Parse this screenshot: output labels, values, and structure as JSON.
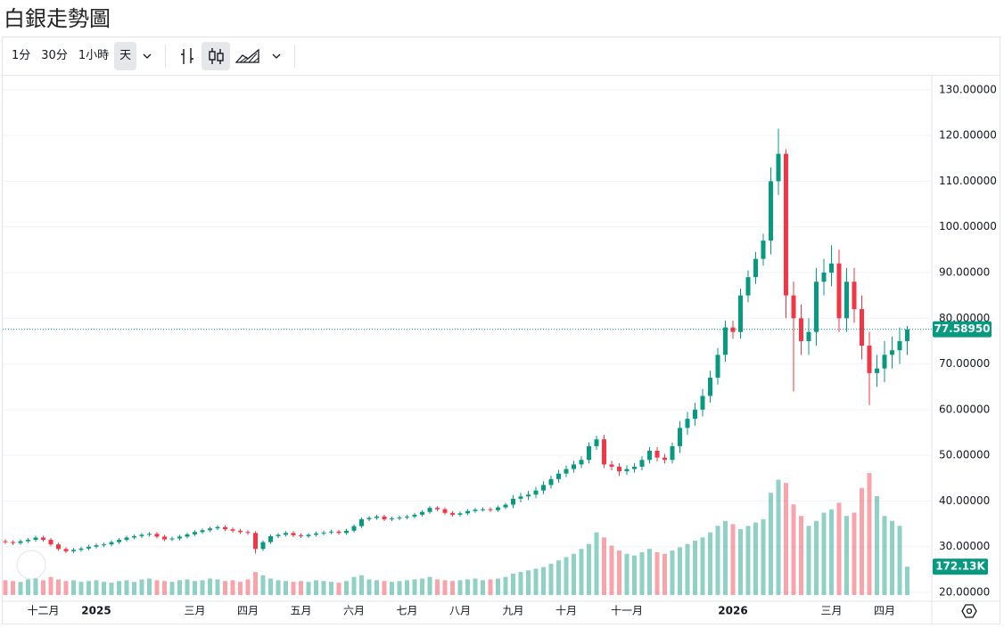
{
  "toolbar": {
    "intervals": [
      "1分",
      "30分",
      "1小時",
      "天"
    ]
  },
  "chart_data": {
    "type": "candlestick",
    "title": "白銀走勢圖",
    "categories": [
      null,
      null,
      null,
      null,
      null,
      "十二月",
      null,
      null,
      null,
      null,
      null,
      null,
      "2025",
      null,
      null,
      null,
      null,
      null,
      null,
      null,
      null,
      null,
      null,
      null,
      null,
      "三月",
      null,
      null,
      null,
      null,
      null,
      null,
      "四月",
      null,
      null,
      null,
      null,
      null,
      null,
      "五月",
      null,
      null,
      null,
      null,
      null,
      null,
      "六月",
      null,
      null,
      null,
      null,
      null,
      null,
      "七月",
      null,
      null,
      null,
      null,
      null,
      null,
      "八月",
      null,
      null,
      null,
      null,
      null,
      null,
      "九月",
      null,
      null,
      null,
      null,
      null,
      null,
      "十月",
      null,
      null,
      null,
      null,
      null,
      null,
      null,
      "十一月",
      null,
      null,
      null,
      null,
      null,
      null,
      null,
      null,
      null,
      null,
      null,
      null,
      null,
      "2026",
      null,
      null,
      null,
      null,
      null,
      null,
      null,
      null,
      null,
      null,
      null,
      null,
      "三月",
      null,
      null,
      null,
      null,
      null,
      null,
      "四月",
      null,
      null,
      null
    ],
    "open": [
      31.2,
      31,
      30.8,
      31.2,
      31.5,
      32,
      31.5,
      30.5,
      29.5,
      29,
      29.3,
      29.6,
      30,
      30.3,
      30.5,
      31,
      31.5,
      32,
      32.3,
      32.6,
      32.8,
      32.2,
      31.6,
      31.8,
      32.2,
      32.7,
      33.2,
      33.6,
      34,
      34.3,
      33.8,
      33.5,
      33.2,
      33,
      29.5,
      31,
      32.3,
      32.6,
      33,
      32.5,
      32.3,
      32.6,
      32.9,
      33.1,
      33.3,
      33,
      33.5,
      34.5,
      36,
      36.3,
      36.6,
      36,
      36.2,
      36.4,
      36.6,
      37,
      37.6,
      38.5,
      38.2,
      37.4,
      37,
      37.3,
      37.8,
      38.1,
      38.2,
      38,
      38.6,
      39.2,
      40.5,
      41,
      41.4,
      42.3,
      43.5,
      44.8,
      46,
      47,
      48,
      49,
      52,
      53.5,
      48,
      47.5,
      46.5,
      47,
      47.5,
      49,
      51,
      49.5,
      49,
      52,
      56,
      58,
      60,
      63,
      67,
      72,
      78,
      77,
      85,
      89,
      93,
      97,
      110,
      116,
      85,
      80,
      75,
      77,
      88,
      90,
      92,
      80,
      88,
      82,
      74,
      68,
      69,
      72,
      73,
      75
    ],
    "high": [
      31.6,
      31.4,
      31.6,
      31.9,
      32.4,
      32.4,
      31.9,
      30.9,
      29.9,
      29.7,
      30,
      30.4,
      30.7,
      30.9,
      31.4,
      31.9,
      32.4,
      32.7,
      33,
      33.2,
      33.2,
      32.6,
      32.2,
      32.6,
      33.1,
      33.6,
      34,
      34.4,
      34.7,
      34.7,
      34.2,
      33.9,
      33.6,
      33.4,
      31.4,
      32.7,
      33,
      33.4,
      33.4,
      32.9,
      33,
      33.3,
      33.5,
      33.7,
      33.7,
      33.9,
      34.9,
      36.4,
      36.7,
      37,
      37,
      36.6,
      36.8,
      37,
      37.4,
      38,
      38.9,
      38.9,
      38.6,
      37.8,
      37.7,
      38.2,
      38.5,
      38.6,
      38.6,
      39,
      39.6,
      41.3,
      41.8,
      42.2,
      43.1,
      44.3,
      45.6,
      46.8,
      47.8,
      48.8,
      49.8,
      52.8,
      54.3,
      54.5,
      48.8,
      48.3,
      47.8,
      48.3,
      49.8,
      51.8,
      51.8,
      50.3,
      52.8,
      57.5,
      59.5,
      61.5,
      64.5,
      68.5,
      73.5,
      79.5,
      79.5,
      86.5,
      90.5,
      94.5,
      98.5,
      113,
      121.5,
      117,
      88,
      83,
      80,
      91,
      93,
      96,
      95,
      91,
      91,
      85,
      77,
      72,
      75,
      76,
      78,
      78.3
    ],
    "low": [
      30.6,
      30.4,
      30.4,
      30.8,
      31.1,
      31.1,
      30.1,
      29.1,
      28.6,
      28.6,
      28.9,
      29.2,
      29.6,
      29.9,
      30.1,
      30.6,
      31.1,
      31.6,
      31.9,
      32.2,
      31.8,
      31.2,
      31.2,
      31.4,
      31.8,
      32.3,
      32.8,
      33.2,
      33.6,
      33.4,
      33.1,
      32.8,
      32.6,
      28.5,
      29.1,
      30.6,
      31.9,
      32.2,
      32.1,
      31.9,
      31.9,
      32.2,
      32.5,
      32.7,
      32.6,
      32.6,
      33.1,
      34.1,
      35.6,
      35.9,
      35.6,
      35.6,
      35.8,
      36,
      36.2,
      36.6,
      37.2,
      37.8,
      37,
      36.6,
      36.6,
      36.9,
      37.4,
      37.7,
      37.6,
      37.6,
      38.2,
      38.4,
      39.7,
      40.2,
      40.6,
      41.5,
      42.7,
      44,
      45.2,
      46.2,
      47.2,
      48.2,
      51.2,
      47.2,
      46.7,
      45.5,
      45.7,
      46.2,
      46.7,
      48.2,
      48.7,
      48.2,
      48.2,
      50.5,
      54.5,
      56.5,
      58.5,
      61.5,
      65.5,
      70.5,
      75.5,
      75.5,
      83.5,
      87.5,
      91.5,
      94,
      107,
      80,
      64,
      72,
      72,
      74,
      85,
      87,
      77,
      77,
      79,
      71,
      61,
      65,
      66,
      69,
      70,
      72
    ],
    "close": [
      31,
      30.8,
      31.2,
      31.5,
      32,
      31.5,
      30.5,
      29.5,
      29,
      29.3,
      29.6,
      30,
      30.3,
      30.5,
      31,
      31.5,
      32,
      32.3,
      32.6,
      32.8,
      32.2,
      31.6,
      31.8,
      32.2,
      32.7,
      33.2,
      33.6,
      34,
      34.3,
      33.8,
      33.5,
      33.2,
      33,
      29.5,
      31,
      32.3,
      32.6,
      33,
      32.5,
      32.3,
      32.6,
      32.9,
      33.1,
      33.3,
      33,
      33.5,
      34.5,
      36,
      36.3,
      36.6,
      36,
      36.2,
      36.4,
      36.6,
      37,
      37.6,
      38.5,
      38.2,
      37.4,
      37,
      37.3,
      37.8,
      38.1,
      38.2,
      38,
      38.6,
      39.2,
      40.5,
      41,
      41.4,
      42.3,
      43.5,
      44.8,
      46,
      47,
      48,
      49,
      52,
      53.5,
      48,
      47.5,
      46.5,
      47,
      47.5,
      49,
      51,
      49.5,
      49,
      52,
      56,
      58,
      60,
      63,
      67,
      72,
      78,
      77,
      85,
      89,
      93,
      97,
      110,
      116,
      85,
      80,
      75,
      77,
      88,
      90,
      92,
      80,
      88,
      82,
      74,
      68,
      69,
      72,
      73,
      75,
      77.5895
    ],
    "volume": [
      90000,
      85000,
      80000,
      95000,
      100000,
      90000,
      110000,
      95000,
      85000,
      90000,
      80000,
      85000,
      90000,
      80000,
      75000,
      85000,
      90000,
      80000,
      95000,
      100000,
      90000,
      85000,
      80000,
      90000,
      95000,
      85000,
      90000,
      100000,
      95000,
      85000,
      90000,
      80000,
      95000,
      140000,
      120000,
      100000,
      90000,
      85000,
      80000,
      85000,
      80000,
      90000,
      85000,
      80000,
      75000,
      85000,
      110000,
      120000,
      95000,
      90000,
      85000,
      80000,
      85000,
      90000,
      95000,
      100000,
      110000,
      95000,
      90000,
      85000,
      90000,
      95000,
      100000,
      90000,
      95000,
      100000,
      110000,
      130000,
      140000,
      150000,
      160000,
      170000,
      190000,
      210000,
      230000,
      250000,
      280000,
      310000,
      380000,
      350000,
      300000,
      270000,
      250000,
      240000,
      260000,
      280000,
      260000,
      250000,
      270000,
      290000,
      310000,
      330000,
      350000,
      380000,
      420000,
      450000,
      430000,
      400000,
      420000,
      440000,
      460000,
      620000,
      700000,
      680000,
      550000,
      480000,
      420000,
      450000,
      500000,
      520000,
      560000,
      480000,
      500000,
      650000,
      740000,
      600000,
      480000,
      450000,
      420000,
      172130
    ],
    "last_price_label": "77.58950",
    "last_volume_label": "172.13K",
    "up_color": "#089981",
    "down_color": "#f23645",
    "ylim": [
      18.05,
      132.9
    ],
    "volume_ylim": [
      0,
      800000
    ],
    "yticks": [
      {
        "value": 20,
        "label": "20.00000"
      },
      {
        "value": 30,
        "label": "30.00000"
      },
      {
        "value": 40,
        "label": "40.00000"
      },
      {
        "value": 50,
        "label": "50.00000"
      },
      {
        "value": 60,
        "label": "60.00000"
      },
      {
        "value": 70,
        "label": "70.00000"
      },
      {
        "value": 80,
        "label": "80.00000"
      },
      {
        "value": 90,
        "label": "90.00000"
      },
      {
        "value": 100,
        "label": "100.00000"
      },
      {
        "value": 110,
        "label": "110.00000"
      },
      {
        "value": 120,
        "label": "120.00000"
      },
      {
        "value": 130,
        "label": "130.00000"
      }
    ],
    "grid": true
  }
}
